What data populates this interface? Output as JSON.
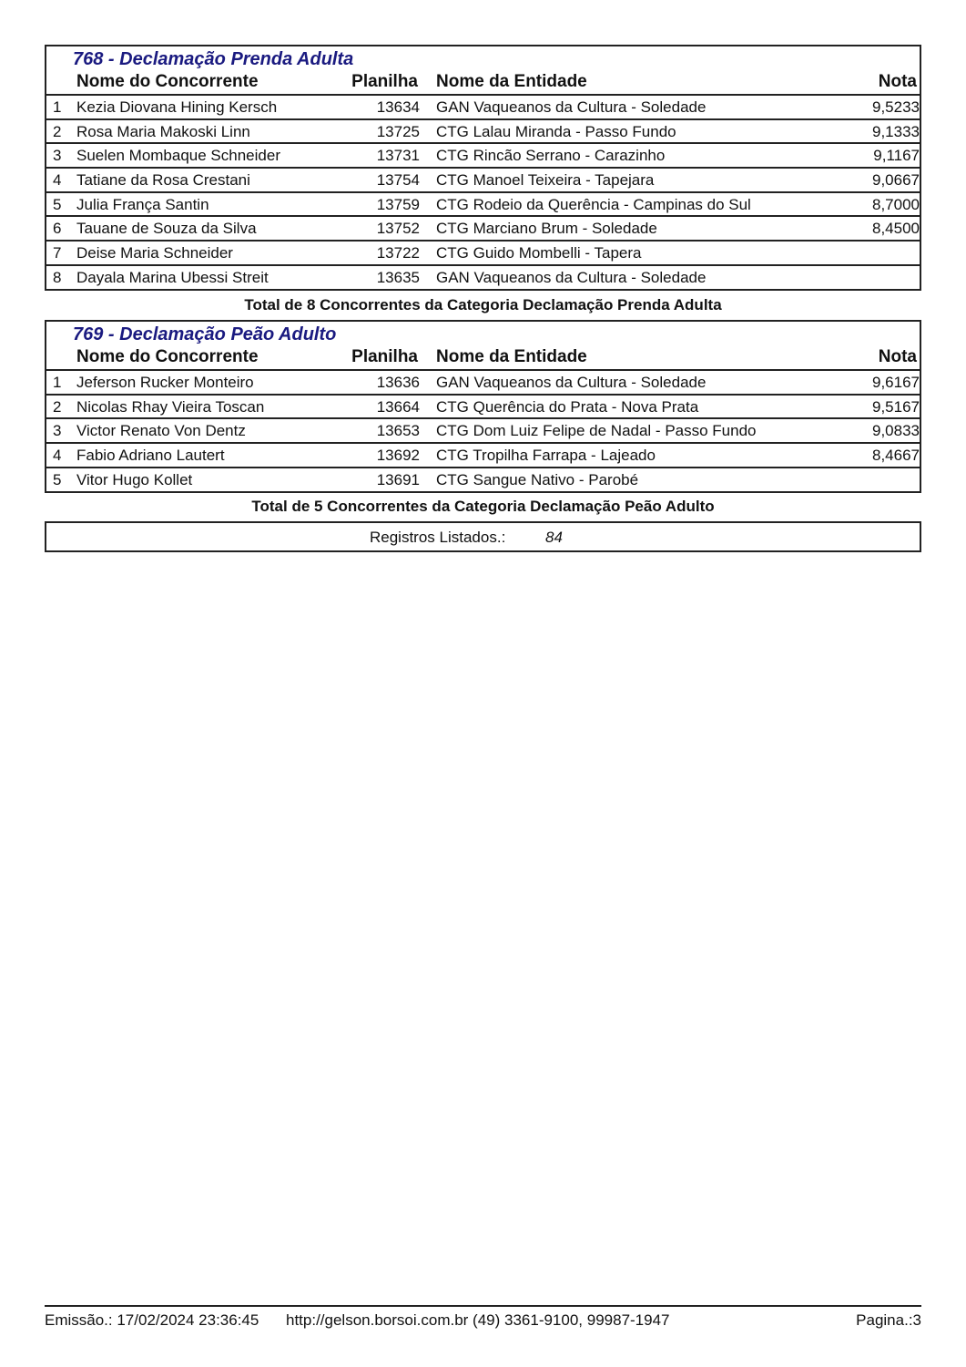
{
  "headers": {
    "name": "Nome do Concorrente",
    "planilha": "Planilha",
    "entidade": "Nome da Entidade",
    "nota": "Nota"
  },
  "sections": [
    {
      "title": "768 - Declamação Prenda Adulta",
      "total": "Total de 8 Concorrentes da Categoria Declamação Prenda Adulta",
      "rows": [
        {
          "n": "1",
          "name": "Kezia Diovana Hining Kersch",
          "planilha": "13634",
          "entidade": "GAN Vaqueanos da Cultura - Soledade",
          "nota": "9,5233"
        },
        {
          "n": "2",
          "name": "Rosa Maria Makoski Linn",
          "planilha": "13725",
          "entidade": "CTG Lalau Miranda - Passo Fundo",
          "nota": "9,1333"
        },
        {
          "n": "3",
          "name": "Suelen Mombaque Schneider",
          "planilha": "13731",
          "entidade": "CTG Rincão Serrano - Carazinho",
          "nota": "9,1167"
        },
        {
          "n": "4",
          "name": "Tatiane da Rosa Crestani",
          "planilha": "13754",
          "entidade": "CTG Manoel Teixeira - Tapejara",
          "nota": "9,0667"
        },
        {
          "n": "5",
          "name": "Julia França Santin",
          "planilha": "13759",
          "entidade": "CTG Rodeio da Querência - Campinas do Sul",
          "nota": "8,7000"
        },
        {
          "n": "6",
          "name": "Tauane de Souza da Silva",
          "planilha": "13752",
          "entidade": "CTG Marciano Brum - Soledade",
          "nota": "8,4500"
        },
        {
          "n": "7",
          "name": "Deise Maria Schneider",
          "planilha": "13722",
          "entidade": "CTG Guido Mombelli - Tapera",
          "nota": ""
        },
        {
          "n": "8",
          "name": "Dayala Marina Ubessi Streit",
          "planilha": "13635",
          "entidade": "GAN Vaqueanos da Cultura - Soledade",
          "nota": ""
        }
      ]
    },
    {
      "title": "769 - Declamação Peão Adulto",
      "total": "Total de 5 Concorrentes da Categoria Declamação Peão Adulto",
      "rows": [
        {
          "n": "1",
          "name": "Jeferson Rucker Monteiro",
          "planilha": "13636",
          "entidade": "GAN Vaqueanos da Cultura - Soledade",
          "nota": "9,6167"
        },
        {
          "n": "2",
          "name": "Nicolas Rhay Vieira Toscan",
          "planilha": "13664",
          "entidade": "CTG Querência do Prata - Nova Prata",
          "nota": "9,5167"
        },
        {
          "n": "3",
          "name": "Victor Renato Von Dentz",
          "planilha": "13653",
          "entidade": "CTG Dom Luiz Felipe de Nadal - Passo Fundo",
          "nota": "9,0833"
        },
        {
          "n": "4",
          "name": "Fabio Adriano Lautert",
          "planilha": "13692",
          "entidade": "CTG Tropilha Farrapa - Lajeado",
          "nota": "8,4667"
        },
        {
          "n": "5",
          "name": "Vitor Hugo Kollet",
          "planilha": "13691",
          "entidade": "CTG Sangue Nativo - Parobé",
          "nota": ""
        }
      ]
    }
  ],
  "registros": {
    "label": "Registros Listados.:",
    "value": "84"
  },
  "footer": {
    "emissao": "Emissão.: 17/02/2024 23:36:45",
    "contact": "http://gelson.borsoi.com.br (49) 3361-9100, 99987-1947",
    "pagina": "Pagina.:3"
  }
}
